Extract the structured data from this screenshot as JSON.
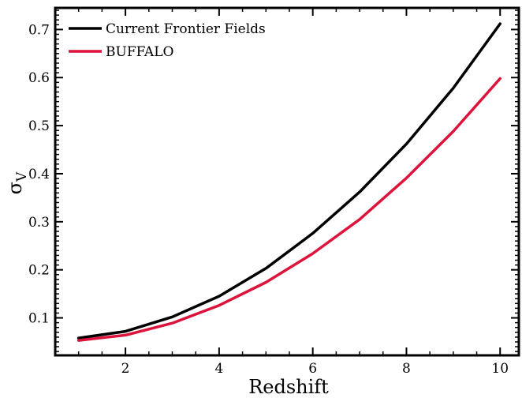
{
  "chart_data": {
    "type": "line",
    "xlabel": "Redshift",
    "ylabel": "σ",
    "ylabel_subscript": "V",
    "xlim": [
      0.5,
      10.4
    ],
    "ylim": [
      0.022,
      0.745
    ],
    "xticks": [
      2,
      4,
      6,
      8,
      10
    ],
    "xtick_labels": [
      "2",
      "4",
      "6",
      "8",
      "10"
    ],
    "yticks": [
      0.1,
      0.2,
      0.3,
      0.4,
      0.5,
      0.6,
      0.7
    ],
    "ytick_labels": [
      "0.1",
      "0.2",
      "0.3",
      "0.4",
      "0.5",
      "0.6",
      "0.7"
    ],
    "legend_position": "top-left",
    "grid": false,
    "x": [
      1,
      2,
      3,
      4,
      5,
      6,
      7,
      8,
      9,
      10
    ],
    "series": [
      {
        "name": "Current Frontier Fields",
        "color": "#000000",
        "values": [
          0.058,
          0.072,
          0.102,
          0.145,
          0.203,
          0.276,
          0.362,
          0.462,
          0.578,
          0.712
        ]
      },
      {
        "name": "BUFFALO",
        "color": "#dc143c",
        "values": [
          0.053,
          0.064,
          0.089,
          0.126,
          0.174,
          0.234,
          0.305,
          0.391,
          0.488,
          0.598
        ]
      }
    ]
  }
}
